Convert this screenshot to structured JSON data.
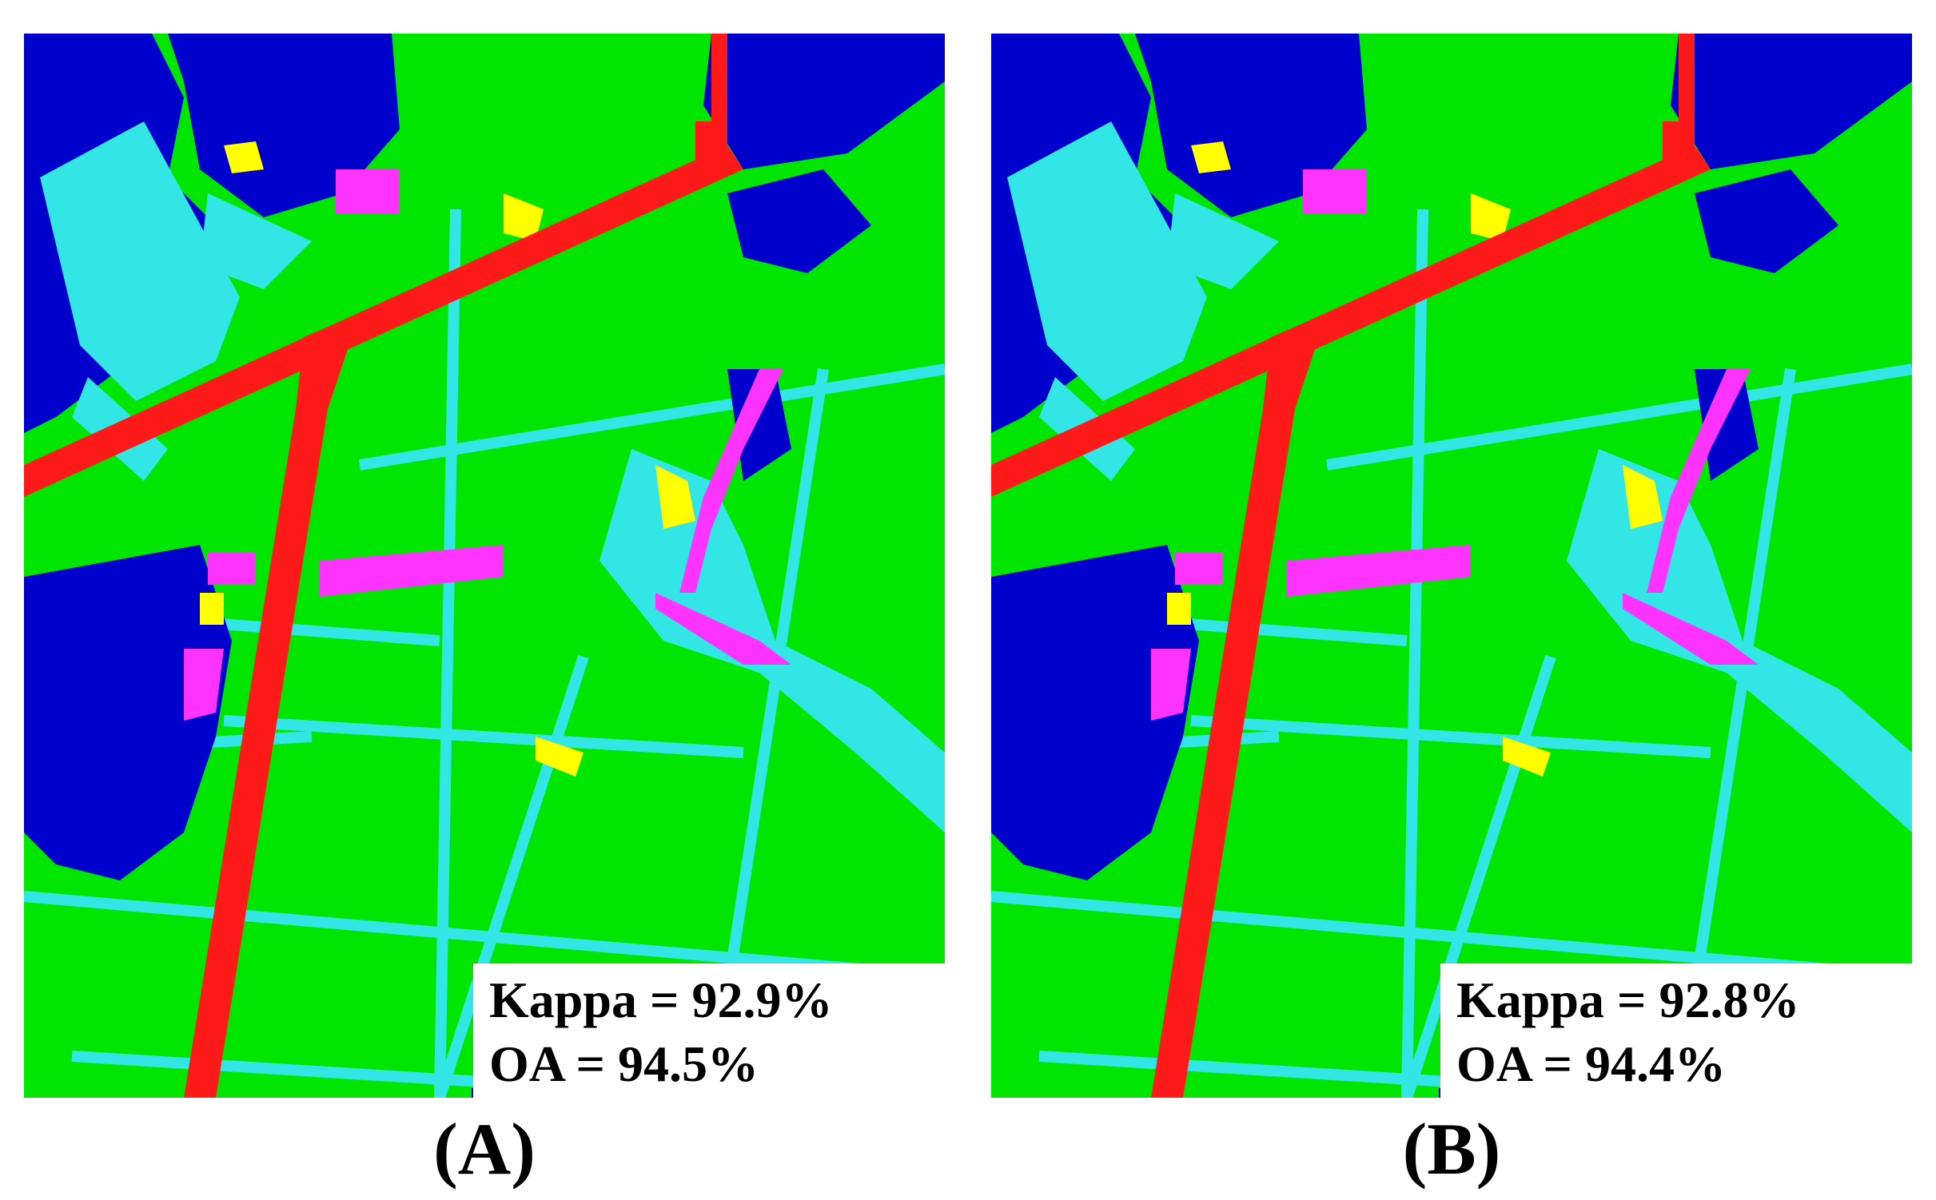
{
  "colors": {
    "vegetation": "#00e600",
    "water_cyan": "#33e6e6",
    "building_blue": "#0000cc",
    "road_red": "#ff1a1a",
    "magenta": "#ff33ff",
    "yellow": "#ffff00"
  },
  "panels": [
    {
      "id": "A",
      "caption": "(A)",
      "kappa_text": "Kappa = 92.9%",
      "oa_text": "OA = 94.5%"
    },
    {
      "id": "B",
      "caption": "(B)",
      "kappa_text": "Kappa = 92.8%",
      "oa_text": "OA = 94.4%"
    }
  ]
}
